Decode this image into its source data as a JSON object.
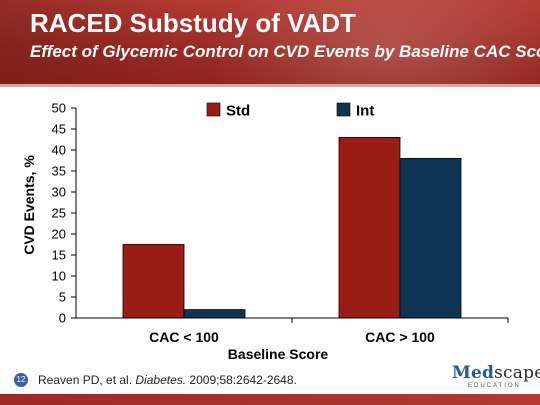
{
  "header": {
    "title": "RACED Substudy of VADT",
    "subtitle": "Effect of Glycemic Control on CVD Events by Baseline CAC Score"
  },
  "chart_data": {
    "type": "bar",
    "categories": [
      "CAC < 100",
      "CAC > 100"
    ],
    "series": [
      {
        "name": "Std",
        "color": "#9b1c14",
        "values": [
          17.5,
          43
        ]
      },
      {
        "name": "Int",
        "color": "#0e3453",
        "values": [
          2,
          38
        ]
      }
    ],
    "title": "",
    "xlabel": "Baseline Score",
    "ylabel": "CVD Events, %",
    "ylim": [
      0,
      50
    ],
    "yticks": [
      0,
      5,
      10,
      15,
      20,
      25,
      30,
      35,
      40,
      45,
      50
    ],
    "grid": false,
    "legend_position": "top"
  },
  "footer": {
    "slide_number": "12",
    "citation_authors": "Reaven PD, et al. ",
    "citation_journal": "Diabetes.",
    "citation_details": " 2009;58:2642-2648.",
    "logo_med": "Med",
    "logo_rest": "scape",
    "logo_sub": "EDUCATION"
  }
}
